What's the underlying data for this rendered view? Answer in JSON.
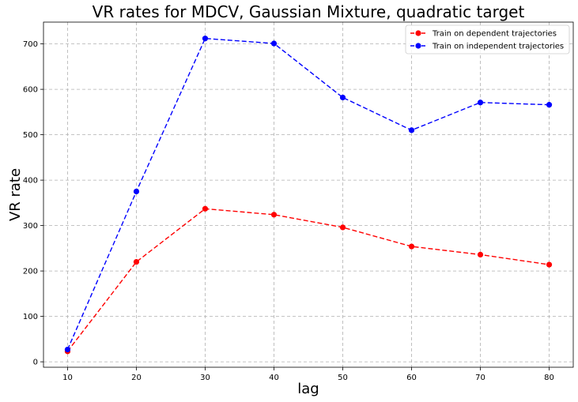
{
  "chart_data": {
    "type": "line",
    "title": "VR rates for MDCV, Gaussian Mixture, quadratic target",
    "xlabel": "lag",
    "ylabel": "VR rate",
    "x": [
      10,
      20,
      30,
      40,
      50,
      60,
      70,
      80
    ],
    "xticks": [
      10,
      20,
      30,
      40,
      50,
      60,
      70,
      80
    ],
    "yticks": [
      0,
      100,
      200,
      300,
      400,
      500,
      600,
      700
    ],
    "xlim": [
      6.5,
      83.5
    ],
    "ylim": [
      -12,
      748
    ],
    "grid": true,
    "legend_position": "top-right",
    "series": [
      {
        "name": "Train on dependent trajectories",
        "color": "#ff0000",
        "values": [
          23,
          220,
          337,
          324,
          296,
          254,
          236,
          214
        ]
      },
      {
        "name": "Train on independent trajectories",
        "color": "#0000ff",
        "values": [
          27,
          375,
          712,
          701,
          582,
          510,
          571,
          566
        ]
      }
    ]
  }
}
